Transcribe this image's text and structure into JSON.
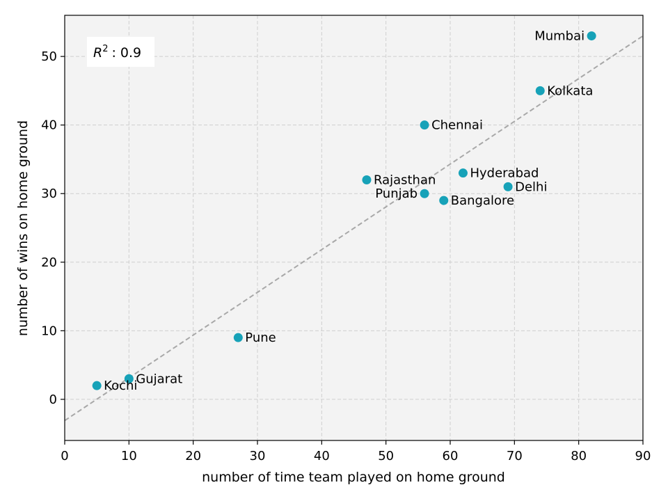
{
  "chart_data": {
    "type": "scatter",
    "xlabel": "number of time team played on home ground",
    "ylabel": "number of wins on home ground",
    "xlim": [
      0,
      90
    ],
    "ylim": [
      -6,
      56
    ],
    "xticks": [
      0,
      10,
      20,
      30,
      40,
      50,
      60,
      70,
      80,
      90
    ],
    "yticks": [
      0,
      10,
      20,
      30,
      40,
      50
    ],
    "grid": true,
    "point_color": "#17a2b8",
    "background_color": "#f3f3f3",
    "points": [
      {
        "label": "Mumbai",
        "x": 82,
        "y": 53,
        "label_side": "left"
      },
      {
        "label": "Kolkata",
        "x": 74,
        "y": 45,
        "label_side": "right"
      },
      {
        "label": "Chennai",
        "x": 56,
        "y": 40,
        "label_side": "right"
      },
      {
        "label": "Hyderabad",
        "x": 62,
        "y": 33,
        "label_side": "right"
      },
      {
        "label": "Rajasthan",
        "x": 47,
        "y": 32,
        "label_side": "right"
      },
      {
        "label": "Delhi",
        "x": 69,
        "y": 31,
        "label_side": "right"
      },
      {
        "label": "Punjab",
        "x": 56,
        "y": 30,
        "label_side": "left"
      },
      {
        "label": "Bangalore",
        "x": 59,
        "y": 29,
        "label_side": "right"
      },
      {
        "label": "Pune",
        "x": 27,
        "y": 9,
        "label_side": "right"
      },
      {
        "label": "Gujarat",
        "x": 10,
        "y": 3,
        "label_side": "right"
      },
      {
        "label": "Kochi",
        "x": 5,
        "y": 2,
        "label_side": "right"
      }
    ],
    "fit_line": {
      "x": [
        0,
        90
      ],
      "y": [
        -3.1,
        53
      ],
      "color": "#a8a8a8",
      "style": "dashed"
    },
    "annotation": {
      "r2_symbol": "R",
      "r2_exponent": "2",
      "r2_value": ": 0.9"
    }
  }
}
